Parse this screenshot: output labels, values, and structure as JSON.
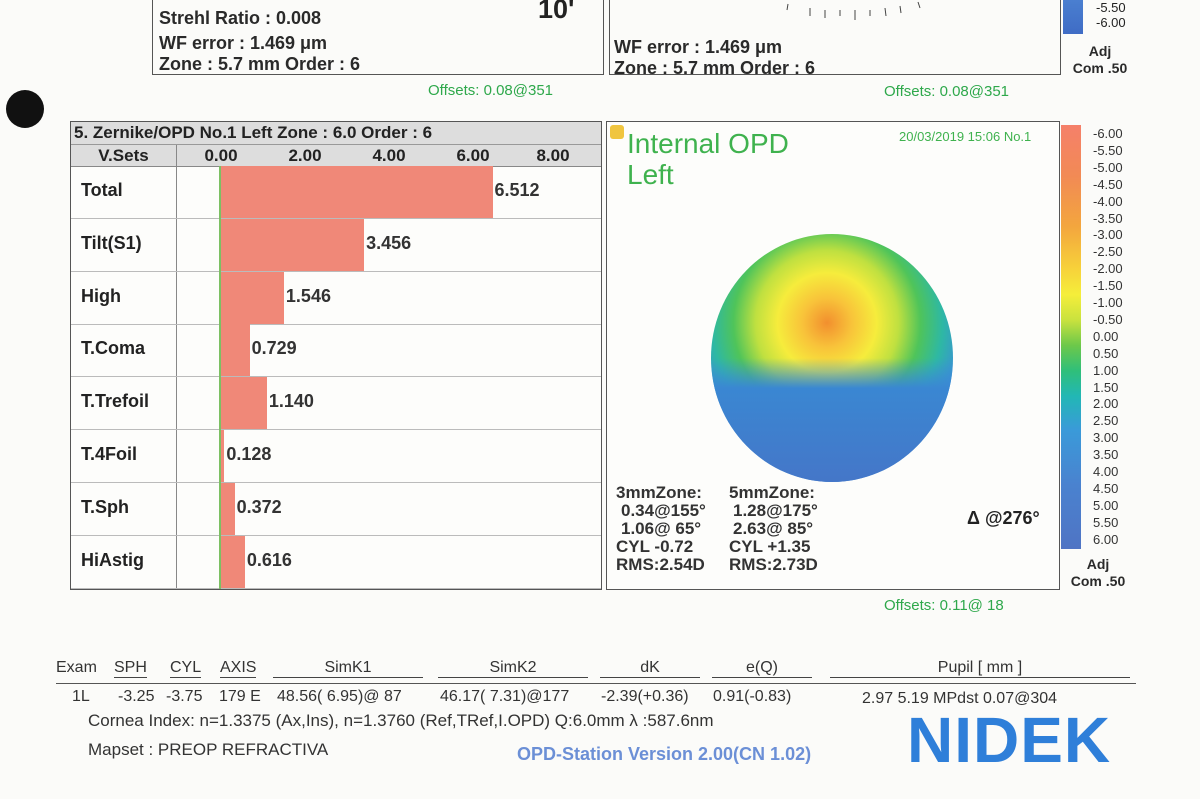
{
  "top_left": {
    "strehl": "Strehl Ratio :  0.008",
    "wf_error": "WF error :  1.469 μm",
    "zone": "Zone : 5.7 mm Order  :  6",
    "big_label": "10'",
    "offsets": "Offsets: 0.08@351"
  },
  "top_mid": {
    "wf_error": "WF error :  1.469 μm",
    "zone": "Zone : 5.7 mm Order  :  6",
    "offsets": "Offsets: 0.08@351"
  },
  "top_scale": {
    "labels": [
      "-5.50",
      "-6.00"
    ],
    "adj": "Adj",
    "com": "Com .50"
  },
  "zernike": {
    "title": "5. Zernike/OPD No.1 Left Zone : 6.0 Order : 6",
    "vsets": "V.Sets",
    "axis_labels": [
      "0.00",
      "2.00",
      "4.00",
      "6.00",
      "8.00"
    ],
    "axis_max": 8,
    "rows": [
      {
        "label": "Total",
        "value": 6.512,
        "value_text": "6.512"
      },
      {
        "label": "Tilt(S1)",
        "value": 3.456,
        "value_text": "3.456"
      },
      {
        "label": "High",
        "value": 1.546,
        "value_text": "1.546"
      },
      {
        "label": "T.Coma",
        "value": 0.729,
        "value_text": "0.729"
      },
      {
        "label": "T.Trefoil",
        "value": 1.14,
        "value_text": "1.140"
      },
      {
        "label": "T.4Foil",
        "value": 0.128,
        "value_text": "0.128"
      },
      {
        "label": "T.Sph",
        "value": 0.372,
        "value_text": "0.372"
      },
      {
        "label": "HiAstig",
        "value": 0.616,
        "value_text": "0.616"
      }
    ],
    "colors": {
      "bar": "#f08878",
      "zero_line": "#7cc063"
    }
  },
  "opd": {
    "title_line1": "Internal OPD",
    "title_line2": "Left",
    "datetime": "20/03/2019 15:06 No.1",
    "zone3": {
      "header": "3mmZone:",
      "line1": "0.34@155°",
      "line2": "1.06@ 65°",
      "cyl": "CYL -0.72",
      "rms": "RMS:2.54D"
    },
    "zone5": {
      "header": "5mmZone:",
      "line1": "1.28@175°",
      "line2": "2.63@ 85°",
      "cyl": "CYL +1.35",
      "rms": "RMS:2.73D"
    },
    "delta": "Δ @276°",
    "offsets": "Offsets: 0.11@ 18"
  },
  "color_scale": {
    "labels": [
      "-6.00",
      "-5.50",
      "-5.00",
      "-4.50",
      "-4.00",
      "-3.50",
      "-3.00",
      "-2.50",
      "-2.00",
      "-1.50",
      "-1.00",
      "-0.50",
      "0.00",
      "0.50",
      "1.00",
      "1.50",
      "2.00",
      "2.50",
      "3.00",
      "3.50",
      "4.00",
      "4.50",
      "5.00",
      "5.50",
      "6.00"
    ],
    "adj": "Adj",
    "com": "Com .50"
  },
  "footer": {
    "headers": {
      "exam": "Exam",
      "sph": "SPH",
      "cyl": "CYL",
      "axis": "AXIS",
      "simk1": "SimK1",
      "simk2": "SimK2",
      "dk": "dK",
      "eq": "e(Q)",
      "pupil": "Pupil [ mm ]"
    },
    "values": {
      "exam": "1L",
      "sph": "-3.25",
      "cyl": "-3.75",
      "axis": "179 E",
      "simk1": "48.56( 6.95)@ 87",
      "simk2": "46.17( 7.31)@177",
      "dk": "-2.39(+0.36)",
      "eq": "0.91(-0.83)",
      "pupil": "2.97  5.19 MPdst  0.07@304"
    },
    "cornea": "Cornea Index: n=1.3375 (Ax,Ins), n=1.3760 (Ref,TRef,I.OPD)  Q:6.0mm  λ :587.6nm",
    "mapset": "Mapset : PREOP REFRACTIVA",
    "version": "OPD-Station Version 2.00(CN 1.02)",
    "brand": "NIDEK"
  }
}
